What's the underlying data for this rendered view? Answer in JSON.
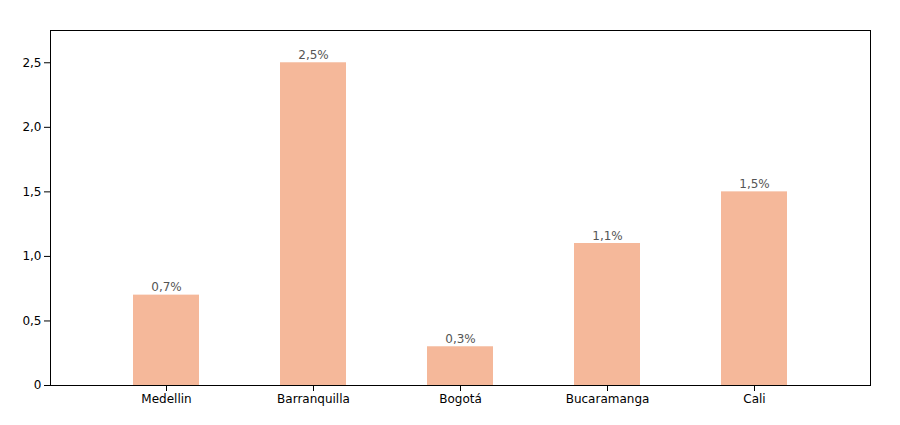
{
  "chart_data": {
    "type": "bar",
    "categories": [
      "Medellin",
      "Barranquilla",
      "Bogotá",
      "Bucaramanga",
      "Cali"
    ],
    "values": [
      0.7,
      2.5,
      0.3,
      1.1,
      1.5
    ],
    "value_labels": [
      "0,7%",
      "2,5%",
      "0,3%",
      "1,1%",
      "1,5%"
    ],
    "data_labels": true,
    "color": "#F5B89A",
    "ylim": [
      0,
      2.75
    ],
    "yticks": [
      0,
      {
        "value": 0.5,
        "label": "0,5"
      },
      {
        "value": 1.0,
        "label": "1,0"
      },
      {
        "value": 1.5,
        "label": "1,5"
      },
      {
        "value": 2.0,
        "label": "2,0"
      },
      {
        "value": 2.5,
        "label": "2,5"
      }
    ],
    "grid": false
  }
}
